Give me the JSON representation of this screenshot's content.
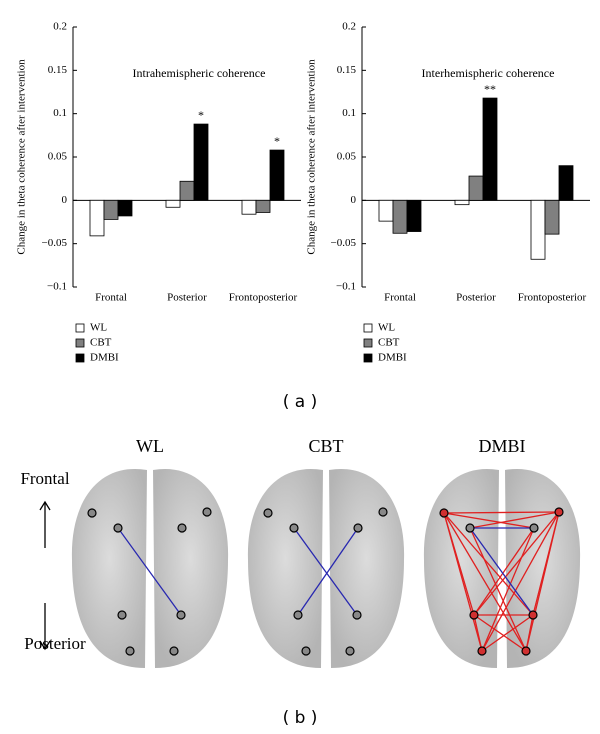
{
  "chart_data": [
    {
      "type": "bar",
      "title": "Intrahemispheric coherence",
      "ylabel": "Change in theta coherence after intervention",
      "categories": [
        "Frontal",
        "Posterior",
        "Frontoposterior"
      ],
      "series": [
        {
          "name": "WL",
          "color": "#ffffff",
          "values": [
            -0.041,
            -0.008,
            -0.016
          ]
        },
        {
          "name": "CBT",
          "color": "#808080",
          "values": [
            -0.022,
            0.022,
            -0.014
          ]
        },
        {
          "name": "DMBI",
          "color": "#000000",
          "values": [
            -0.018,
            0.088,
            0.058
          ]
        }
      ],
      "ylim": [
        -0.1,
        0.2
      ],
      "yticks": [
        {
          "value": -0.1,
          "label": "−0.1"
        },
        {
          "value": -0.05,
          "label": "−0.05"
        },
        0,
        0.05,
        0.1,
        0.15,
        0.2
      ],
      "annotations": [
        "*",
        "*"
      ]
    },
    {
      "type": "bar",
      "title": "Interhemispheric coherence",
      "ylabel": "Change in theta coherence after intervention",
      "categories": [
        "Frontal",
        "Posterior",
        "Frontoposterior"
      ],
      "series": [
        {
          "name": "WL",
          "color": "#ffffff",
          "values": [
            -0.024,
            -0.005,
            -0.068
          ]
        },
        {
          "name": "CBT",
          "color": "#808080",
          "values": [
            -0.038,
            0.028,
            -0.039
          ]
        },
        {
          "name": "DMBI",
          "color": "#000000",
          "values": [
            -0.036,
            0.118,
            0.04
          ]
        }
      ],
      "ylim": [
        -0.1,
        0.2
      ],
      "yticks": [
        {
          "value": -0.1,
          "label": "−0.1"
        },
        {
          "value": -0.05,
          "label": "−0.05"
        },
        0,
        0.05,
        0.1,
        0.15,
        0.2
      ],
      "annotations": [
        "**"
      ]
    }
  ],
  "panel_a_label": "( a )",
  "diagram": {
    "brains": [
      {
        "label": "WL"
      },
      {
        "label": "CBT"
      },
      {
        "label": "DMBI"
      }
    ],
    "top_label": "Frontal",
    "bottom_label": "Posterior",
    "panel_label": "( b )"
  }
}
